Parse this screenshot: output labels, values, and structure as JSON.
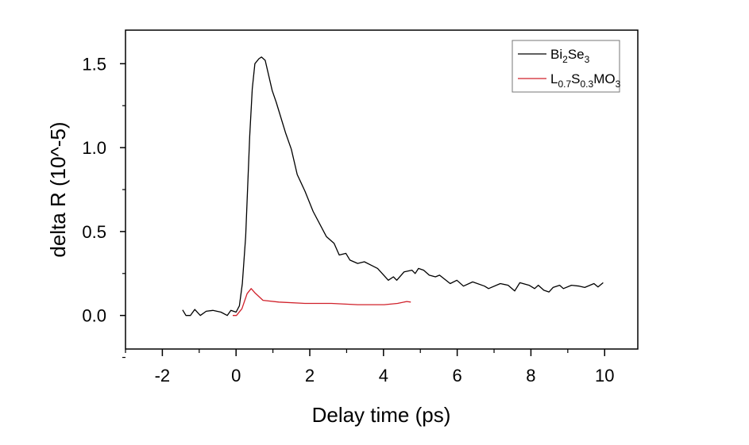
{
  "chart_data": {
    "type": "line",
    "title": "",
    "xlabel": "Delay time (ps)",
    "ylabel": "delta R (10^-5)",
    "xlim": [
      -3,
      10.9
    ],
    "ylim": [
      -0.2,
      1.7
    ],
    "xticks": [
      -2,
      0,
      2,
      4,
      6,
      8,
      10
    ],
    "xtick_labels": [
      "-2",
      "0",
      "2",
      "4",
      "6",
      "8",
      "10"
    ],
    "yticks": [
      0.0,
      0.5,
      1.0,
      1.5
    ],
    "ytick_labels": [
      "0.0",
      "0.5",
      "1.0",
      "1.5"
    ],
    "grid": false,
    "legend_position": "top-right",
    "series": [
      {
        "name": "Bi2Se3",
        "legend": {
          "base": [
            "Bi",
            "Se"
          ],
          "subs": [
            "2",
            "3"
          ]
        },
        "color": "#000000",
        "x": [
          -1.45,
          -1.36,
          -1.24,
          -1.12,
          -0.97,
          -0.81,
          -0.63,
          -0.41,
          -0.24,
          -0.14,
          0.0,
          0.09,
          0.17,
          0.26,
          0.37,
          0.44,
          0.51,
          0.62,
          0.69,
          0.79,
          0.98,
          1.09,
          1.34,
          1.5,
          1.66,
          1.87,
          2.09,
          2.45,
          2.66,
          2.8,
          2.98,
          3.09,
          3.3,
          3.48,
          3.66,
          3.84,
          4.13,
          4.27,
          4.36,
          4.56,
          4.77,
          4.86,
          4.95,
          5.09,
          5.24,
          5.41,
          5.52,
          5.81,
          5.99,
          6.17,
          6.42,
          6.74,
          6.85,
          7.17,
          7.38,
          7.56,
          7.7,
          7.95,
          8.1,
          8.2,
          8.35,
          8.49,
          8.6,
          8.78,
          8.88,
          9.1,
          9.31,
          9.46,
          9.71,
          9.82,
          9.96
        ],
        "y": [
          0.033,
          0.0,
          0.0,
          0.036,
          0.0,
          0.025,
          0.03,
          0.02,
          0.0,
          0.03,
          0.02,
          0.057,
          0.19,
          0.47,
          1.07,
          1.35,
          1.5,
          1.53,
          1.54,
          1.52,
          1.34,
          1.27,
          1.09,
          0.99,
          0.84,
          0.74,
          0.62,
          0.47,
          0.43,
          0.36,
          0.37,
          0.33,
          0.31,
          0.32,
          0.3,
          0.28,
          0.21,
          0.23,
          0.21,
          0.26,
          0.27,
          0.25,
          0.28,
          0.27,
          0.24,
          0.23,
          0.24,
          0.19,
          0.21,
          0.175,
          0.2,
          0.175,
          0.16,
          0.19,
          0.18,
          0.146,
          0.195,
          0.18,
          0.16,
          0.18,
          0.15,
          0.14,
          0.167,
          0.18,
          0.16,
          0.18,
          0.175,
          0.167,
          0.19,
          0.17,
          0.195
        ]
      },
      {
        "name": "L0.7S0.3MO3",
        "legend": {
          "base": [
            "L",
            "S",
            "MO"
          ],
          "subs": [
            "0.7",
            "0.3",
            "3"
          ]
        },
        "color": "#d0202a",
        "x": [
          -0.09,
          0.01,
          0.16,
          0.3,
          0.41,
          0.51,
          0.73,
          1.16,
          1.87,
          2.59,
          3.3,
          4.02,
          4.38,
          4.63,
          4.74
        ],
        "y": [
          0.0,
          0.0,
          0.04,
          0.13,
          0.16,
          0.135,
          0.09,
          0.08,
          0.072,
          0.072,
          0.064,
          0.064,
          0.072,
          0.083,
          0.08
        ]
      }
    ]
  }
}
